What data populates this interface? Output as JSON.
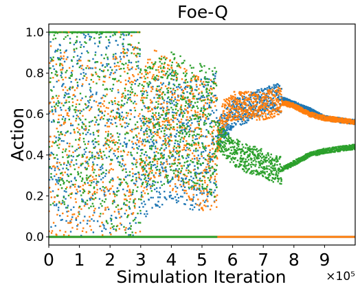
{
  "chart_data": {
    "type": "scatter",
    "title": "Foe-Q",
    "xlabel": "Simulation Iteration",
    "ylabel": "Action",
    "x_offset_label": "×10⁵",
    "xlim": [
      0,
      10
    ],
    "ylim": [
      -0.04,
      1.04
    ],
    "xticks": [
      0,
      1,
      2,
      3,
      4,
      5,
      6,
      7,
      8,
      9
    ],
    "yticks": [
      0.0,
      0.2,
      0.4,
      0.6,
      0.8,
      1.0
    ],
    "xtick_labels": [
      "0",
      "1",
      "2",
      "3",
      "4",
      "5",
      "6",
      "7",
      "8",
      "9"
    ],
    "ytick_labels": [
      "0.0",
      "0.2",
      "0.4",
      "0.6",
      "0.8",
      "1.0"
    ],
    "grid": false,
    "legend": "none",
    "series": [
      {
        "color": "#1f77b4",
        "trend": [
          [
            0,
            0.5
          ],
          [
            0.5,
            0.45
          ],
          [
            1,
            0.5
          ],
          [
            1.5,
            0.5
          ],
          [
            2,
            0.45
          ],
          [
            2.5,
            0.45
          ],
          [
            3,
            0.4
          ],
          [
            3.5,
            0.45
          ],
          [
            4,
            0.5
          ],
          [
            4.5,
            0.45
          ],
          [
            5,
            0.45
          ],
          [
            5.5,
            0.5
          ],
          [
            6,
            0.6
          ],
          [
            6.5,
            0.63
          ],
          [
            7,
            0.66
          ],
          [
            7.5,
            0.68
          ],
          [
            8,
            0.65
          ],
          [
            8.5,
            0.62
          ],
          [
            9,
            0.58
          ],
          [
            10,
            0.56
          ]
        ],
        "zero_line": [
          0,
          10
        ]
      },
      {
        "color": "#ff7f0e",
        "trend": [
          [
            0,
            0.4
          ],
          [
            0.5,
            0.4
          ],
          [
            1,
            0.35
          ],
          [
            1.5,
            0.3
          ],
          [
            2,
            0.3
          ],
          [
            2.5,
            0.4
          ],
          [
            3,
            0.5
          ],
          [
            3.5,
            0.6
          ],
          [
            4,
            0.55
          ],
          [
            4.5,
            0.5
          ],
          [
            5,
            0.45
          ],
          [
            5.5,
            0.45
          ],
          [
            5.7,
            0.6
          ],
          [
            6,
            0.64
          ],
          [
            6.5,
            0.64
          ],
          [
            7,
            0.64
          ],
          [
            7.5,
            0.66
          ],
          [
            8,
            0.64
          ],
          [
            8.5,
            0.6
          ],
          [
            9,
            0.58
          ],
          [
            10,
            0.56
          ]
        ],
        "zero_line": [
          0,
          10
        ]
      },
      {
        "color": "#2ca02c",
        "trend": [
          [
            0,
            0.7
          ],
          [
            0.5,
            0.7
          ],
          [
            1,
            0.65
          ],
          [
            1.5,
            0.7
          ],
          [
            2,
            0.6
          ],
          [
            2.5,
            0.55
          ],
          [
            3,
            0.5
          ],
          [
            3.5,
            0.55
          ],
          [
            4,
            0.6
          ],
          [
            4.5,
            0.55
          ],
          [
            5,
            0.55
          ],
          [
            5.5,
            0.5
          ],
          [
            6,
            0.42
          ],
          [
            6.5,
            0.38
          ],
          [
            7,
            0.36
          ],
          [
            7.5,
            0.32
          ],
          [
            8,
            0.36
          ],
          [
            8.5,
            0.4
          ],
          [
            9,
            0.42
          ],
          [
            10,
            0.44
          ]
        ],
        "zero_line": [
          0,
          5.5
        ]
      }
    ]
  }
}
